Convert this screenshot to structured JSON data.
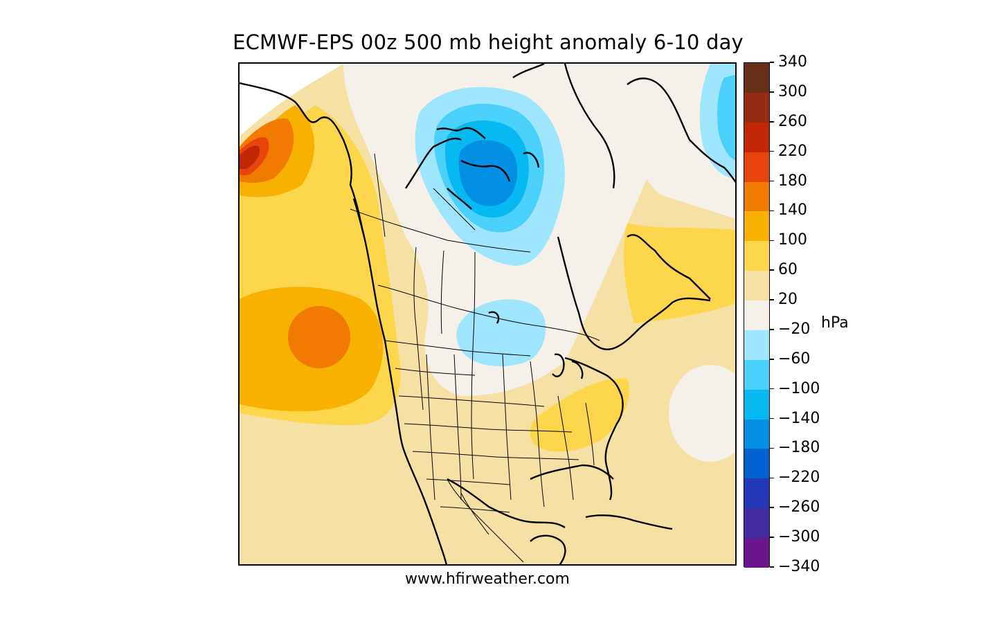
{
  "title": "ECMWF-EPS 00z 500 mb height anomaly 6-10 day",
  "footer": "www.hfirweather.com",
  "colorbar": {
    "unit": "hPa",
    "levels": [
      340,
      300,
      260,
      220,
      180,
      140,
      100,
      60,
      20,
      -20,
      -60,
      -100,
      -140,
      -180,
      -220,
      -260,
      -300,
      -340
    ],
    "level_labels": [
      "340",
      "300",
      "260",
      "220",
      "180",
      "140",
      "100",
      "60",
      "20",
      "−20",
      "−60",
      "−100",
      "−140",
      "−180",
      "−220",
      "−260",
      "−300",
      "−340"
    ],
    "colors": [
      "#663019",
      "#962a12",
      "#c12605",
      "#e8440b",
      "#f07b00",
      "#f8b100",
      "#fdd64c",
      "#f6e1a4",
      "#f5f0ea",
      "#9ee5fe",
      "#49d1fb",
      "#07b9f1",
      "#0190e3",
      "#0060d0",
      "#2437b7",
      "#432ba2",
      "#6a148e"
    ]
  }
}
